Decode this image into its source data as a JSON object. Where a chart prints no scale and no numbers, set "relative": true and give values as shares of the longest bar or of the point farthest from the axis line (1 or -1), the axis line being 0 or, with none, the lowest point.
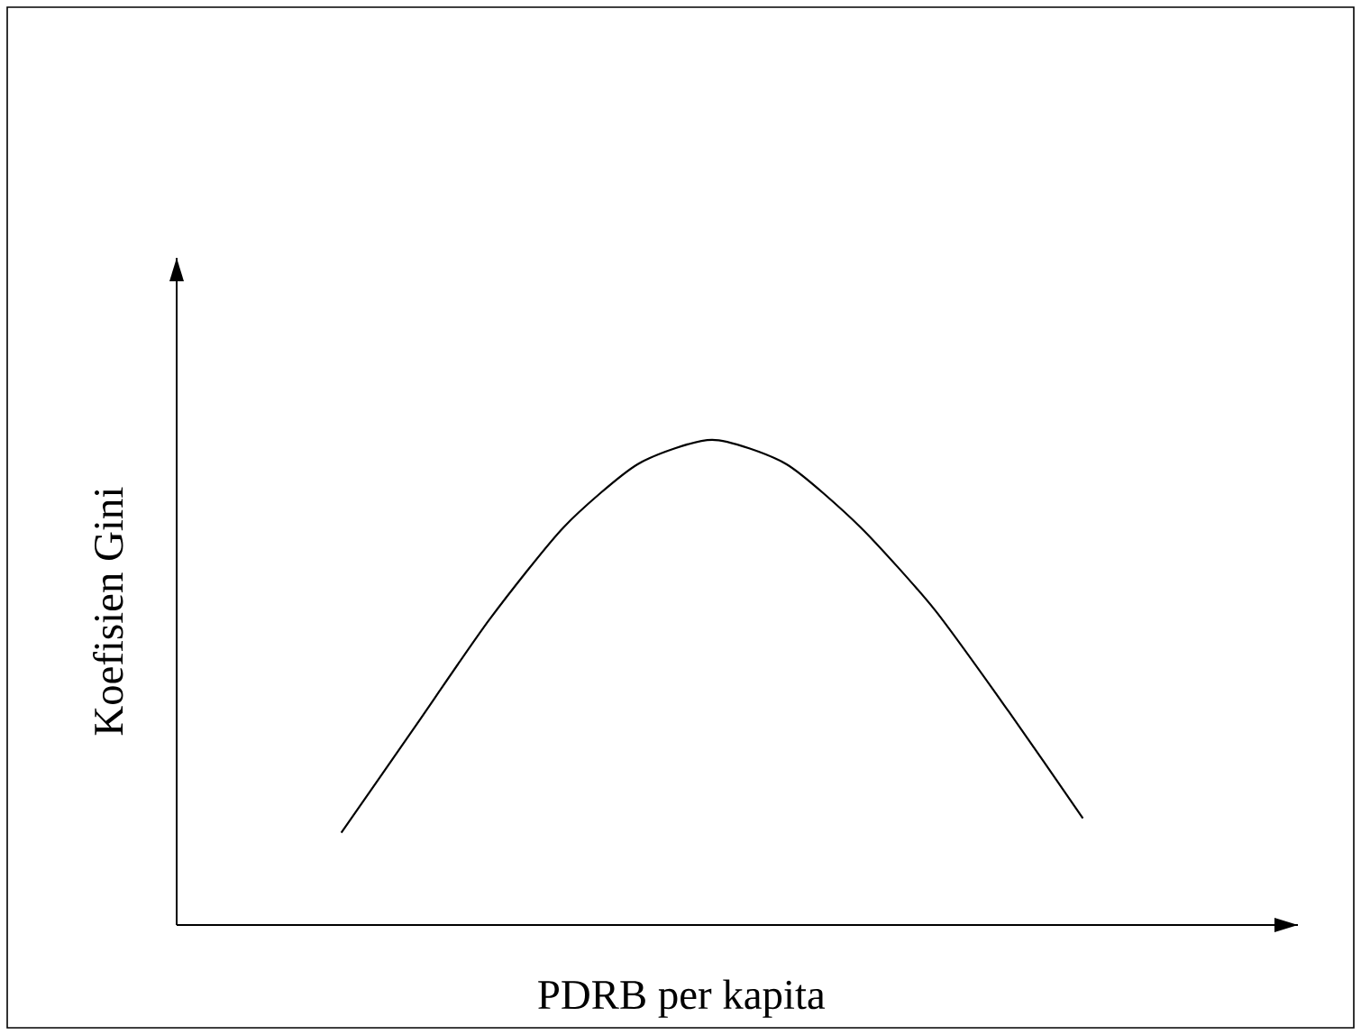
{
  "chart_data": {
    "type": "line",
    "relative": true,
    "xlabel": "PDRB per kapita",
    "ylabel": "Koefisien Gini",
    "categories": [
      null,
      null,
      null,
      null,
      null,
      null,
      null,
      null,
      null,
      null,
      null
    ],
    "series": [
      {
        "color": "#000000",
        "values": [
          0.19,
          0.41,
          0.63,
          0.82,
          0.95,
          1.0,
          0.95,
          0.82,
          0.65,
          0.44,
          0.22
        ]
      }
    ]
  }
}
